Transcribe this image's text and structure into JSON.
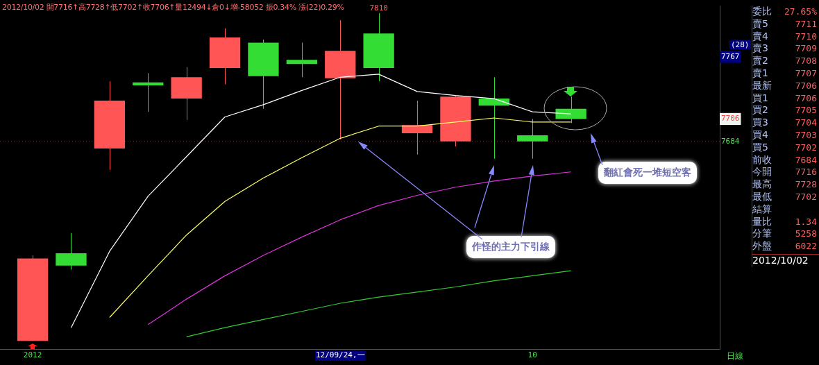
{
  "chart_data": {
    "type": "candlestick",
    "title": "2012/10/02 開7716↑高7728↑低7702↑收7706↑量12494↓倉0↓增-58052 振0.34% 漲(22)0.29%",
    "categories": [
      "2012",
      null,
      null,
      null,
      null,
      null,
      null,
      null,
      "12/09/24,一",
      null,
      null,
      null,
      null,
      "10",
      null
    ],
    "ohlc": [
      [
        7488,
        7572,
        7488,
        7569
      ],
      [
        7574,
        7594,
        7558,
        7562
      ],
      [
        7677,
        7743,
        7656,
        7724
      ],
      [
        7742,
        7751,
        7713,
        7739
      ],
      [
        7726,
        7757,
        7705,
        7747
      ],
      [
        7756,
        7795,
        7740,
        7786
      ],
      [
        7781,
        7784,
        7716,
        7748
      ],
      [
        7764,
        7781,
        7747,
        7760
      ],
      [
        7746,
        7803,
        7686,
        7773
      ],
      [
        7790,
        7810,
        7743,
        7756
      ],
      [
        7692,
        7724,
        7671,
        7700
      ],
      [
        7684,
        7729,
        7679,
        7728
      ],
      [
        7726,
        7747,
        7667,
        7719
      ],
      [
        7690,
        7706,
        7667,
        7684
      ],
      [
        7716,
        7728,
        7702,
        7706
      ]
    ],
    "colors": [
      "#ff5555",
      "#33dd33",
      "#ff5555",
      "#33dd33",
      "#ff5555",
      "#ff5555",
      "#33dd33",
      "#33dd33",
      "#ff5555",
      "#33dd33",
      "#ff5555",
      "#ff5555",
      "#33dd33",
      "#33dd33",
      "#33dd33"
    ],
    "series": [
      {
        "type": "line",
        "color": "#ffffff",
        "values": [
          null,
          7501,
          7576,
          7630,
          7669,
          7708,
          7720,
          7734,
          7747,
          7750,
          7733,
          7729,
          7726,
          7713,
          7711
        ]
      },
      {
        "type": "line",
        "color": "#ffff66",
        "values": [
          null,
          null,
          7511,
          7552,
          7592,
          7625,
          7648,
          7668,
          7687,
          7699,
          7699,
          7703,
          7707,
          7703,
          7703
        ]
      },
      {
        "type": "line",
        "color": "#dd33dd",
        "values": [
          null,
          null,
          null,
          7504,
          7529,
          7552,
          7572,
          7590,
          7607,
          7621,
          7631,
          7639,
          7645,
          7650,
          7654
        ]
      },
      {
        "type": "line",
        "color": "#33cc33",
        "values": [
          null,
          null,
          null,
          null,
          7492,
          7501,
          7509,
          7517,
          7525,
          7531,
          7536,
          7541,
          7547,
          7552,
          7557
        ]
      }
    ],
    "ylim": [
      7480,
      7817
    ],
    "yticks": [
      7684,
      7706,
      7767
    ],
    "ref_lines": [
      {
        "axis": "y",
        "value": 7684,
        "color": "#aa2020",
        "line_style": "dotted"
      }
    ],
    "grid": false,
    "legend": false,
    "annotations": [
      "(28)",
      {
        "text": "7810",
        "y": 7810
      },
      "作怪的主力下引線",
      "翻紅會死一堆短空客",
      "日線",
      "委比 27.65%",
      "賣5 7711",
      "賣4 7710",
      "賣3 7709",
      "賣2 7708",
      "賣1 7707",
      "最新 7706",
      "買1 7706",
      "買2 7705",
      "買3 7704",
      "買4 7703",
      "買5 7702",
      "前收 7684",
      "今開 7716",
      "最高 7728",
      "最低 7702",
      "結算",
      "量比 1.34",
      "分筆 5258",
      "外盤 6022",
      "2012/10/02"
    ]
  }
}
